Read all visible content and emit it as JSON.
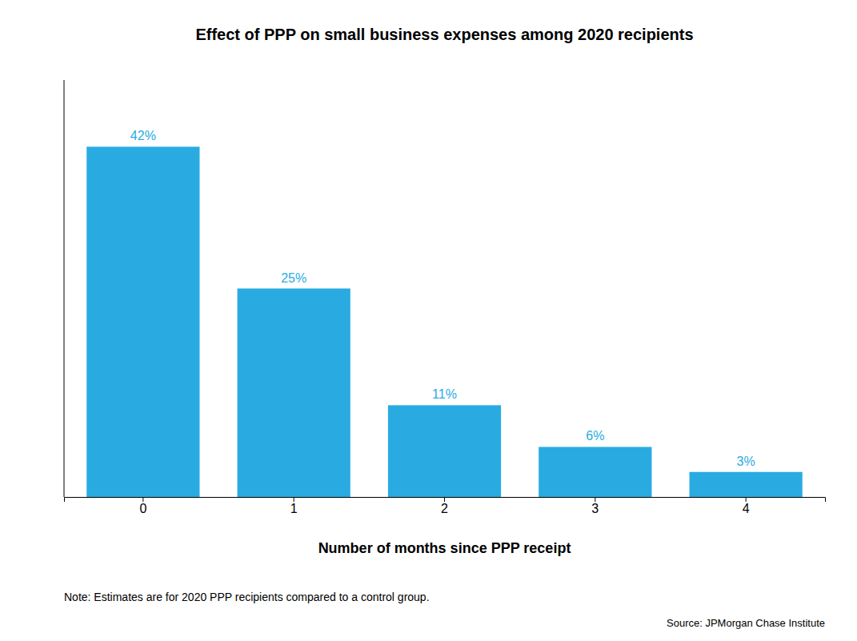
{
  "chart_data": {
    "type": "bar",
    "title": "Effect of PPP on small business expenses among 2020 recipients",
    "xlabel": "Number of months since PPP receipt",
    "categories": [
      0,
      1,
      2,
      3,
      4
    ],
    "values": [
      42,
      25,
      11,
      6,
      3
    ],
    "value_labels": [
      "42%",
      "25%",
      "11%",
      "6%",
      "3%"
    ],
    "data_labels": true,
    "color": "#29ABE2",
    "ylim": [
      0,
      50
    ],
    "grid": false,
    "tick_labels": "x",
    "note": "Note: Estimates are for 2020 PPP recipients compared to a control group.",
    "source": "Source: JPMorgan Chase Institute"
  }
}
